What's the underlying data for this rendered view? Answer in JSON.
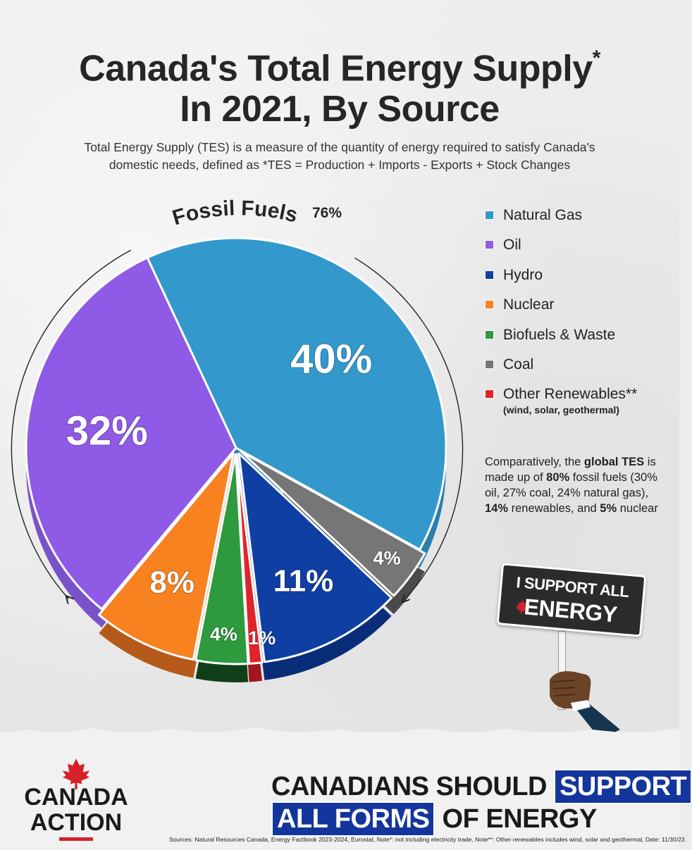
{
  "page": {
    "title_line1": "Canada's Total Energy Supply",
    "title_asterisk": "*",
    "title_line2": "In 2021, By Source",
    "subtitle_line1": "Total Energy Supply (TES) is a measure of the quantity of energy required to satisfy Canada's",
    "subtitle_line2": "domestic needs, defined as *TES = Production + Imports - Exports + Stock Changes"
  },
  "chart_data": {
    "type": "pie",
    "title": "Canada's Total Energy Supply* In 2021, By Source",
    "slices": [
      {
        "name": "Natural Gas",
        "value": 40,
        "label": "40%",
        "color": "#3399cc",
        "side": "#2a7fae"
      },
      {
        "name": "Coal",
        "value": 4,
        "label": "4%",
        "color": "#767676",
        "side": "#4a4a4a"
      },
      {
        "name": "Hydro",
        "value": 11,
        "label": "11%",
        "color": "#0f3fa3",
        "side": "#0a2d7a"
      },
      {
        "name": "Other Renewables**",
        "value": 1,
        "label": "1%",
        "color": "#e0242b",
        "side": "#a3161b"
      },
      {
        "name": "Biofuels & Waste",
        "value": 4,
        "label": "4%",
        "color": "#2d9a3e",
        "side": "#103e18"
      },
      {
        "name": "Nuclear",
        "value": 8,
        "label": "8%",
        "color": "#f7821f",
        "side": "#b55a1a"
      },
      {
        "name": "Oil",
        "value": 32,
        "label": "32%",
        "color": "#8e5ae6",
        "side": "#7a52c8"
      }
    ],
    "group_annotation": {
      "label": "Fossil Fuels",
      "value": "76%"
    },
    "legend": {
      "placement": "right",
      "items": [
        {
          "label": "Natural Gas",
          "color": "#3399cc"
        },
        {
          "label": "Oil",
          "color": "#8e5ae6"
        },
        {
          "label": "Hydro",
          "color": "#0f3fa3"
        },
        {
          "label": "Nuclear",
          "color": "#f7821f"
        },
        {
          "label": "Biofuels & Waste",
          "color": "#2d9a3e"
        },
        {
          "label": "Coal",
          "color": "#767676"
        },
        {
          "label": "Other Renewables**",
          "color": "#e0242b",
          "note": "(wind, solar, geothermal)"
        }
      ]
    }
  },
  "comparison": {
    "t1": "Comparatively, the ",
    "b1": "global TES",
    "t2": " is made up of ",
    "b2": "80%",
    "t3": " fossil fuels (30% oil, 27% coal, 24% natural gas), ",
    "b3": "14%",
    "t4": " renewables, and ",
    "b4": "5%",
    "t5": " nuclear"
  },
  "sign": {
    "line1": "I SUPPORT ALL",
    "line2": "ENERGY",
    "icon": "maple-leaf-icon"
  },
  "logo": {
    "line1": "CANADA",
    "line2": "ACTION",
    "icon": "maple-leaf-icon",
    "accent": "#d7202a"
  },
  "tagline": {
    "row1_plain": "CANADIANS SHOULD",
    "row1_hi": "SUPPORT",
    "row2_hi": "ALL FORMS",
    "row2_plain": "OF ENERGY",
    "highlight_color": "#13359c"
  },
  "sources": "Sources: Natural Resources Canada, Energy Factbook 2023-2024, Eurostat, Note*: not including electricity trade, Note**: Other renewables includes wind, solar and geothermal, Date: 11/30/23"
}
